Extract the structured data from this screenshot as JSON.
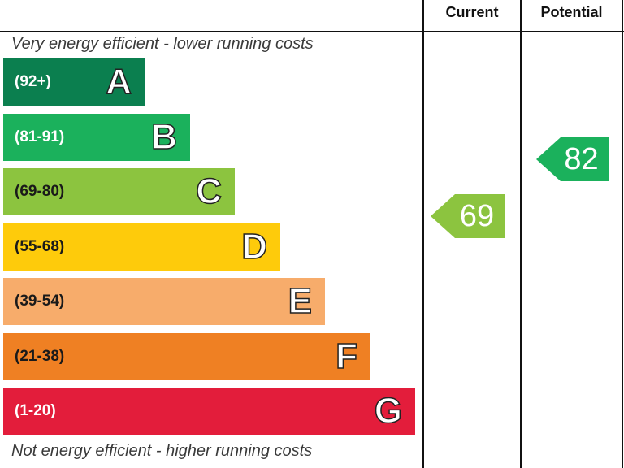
{
  "chart_data": {
    "type": "bar",
    "header": {
      "current": "Current",
      "potential": "Potential"
    },
    "top_caption": "Very energy efficient - lower running costs",
    "bottom_caption": "Not energy efficient - higher running costs",
    "bands": [
      {
        "letter": "A",
        "range": "(92+)",
        "min": 92,
        "max": 100,
        "color": "#0b7f4f",
        "range_color": "#ffffff"
      },
      {
        "letter": "B",
        "range": "(81-91)",
        "min": 81,
        "max": 91,
        "color": "#1bb15c",
        "range_color": "#ffffff"
      },
      {
        "letter": "C",
        "range": "(69-80)",
        "min": 69,
        "max": 80,
        "color": "#8cc43f",
        "range_color": "#1a1a1a"
      },
      {
        "letter": "D",
        "range": "(55-68)",
        "min": 55,
        "max": 68,
        "color": "#fecb0b",
        "range_color": "#1a1a1a"
      },
      {
        "letter": "E",
        "range": "(39-54)",
        "min": 39,
        "max": 54,
        "color": "#f7ac6b",
        "range_color": "#1a1a1a"
      },
      {
        "letter": "F",
        "range": "(21-38)",
        "min": 21,
        "max": 38,
        "color": "#ef8023",
        "range_color": "#1a1a1a"
      },
      {
        "letter": "G",
        "range": "(1-20)",
        "min": 1,
        "max": 20,
        "color": "#e31d3b",
        "range_color": "#ffffff"
      }
    ],
    "current": {
      "value": 69,
      "band": "C",
      "color": "#8cc43f"
    },
    "potential": {
      "value": 82,
      "band": "B",
      "color": "#1bb15c"
    }
  }
}
